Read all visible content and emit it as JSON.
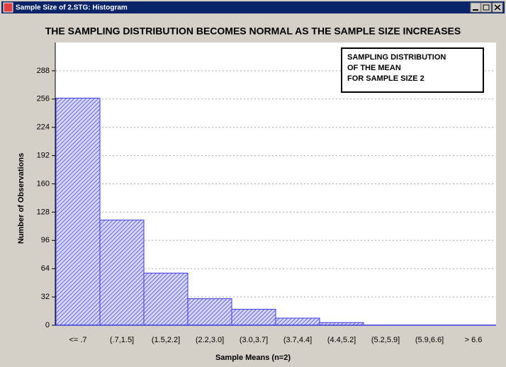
{
  "window": {
    "title": "Sample Size of 2.STG: Histogram"
  },
  "chart_data": {
    "type": "bar",
    "title": "THE SAMPLING DISTRIBUTION BECOMES NORMAL AS THE SAMPLE SIZE INCREASES",
    "annotation": [
      "SAMPLING DISTRIBUTION",
      "OF THE MEAN",
      "FOR SAMPLE SIZE 2"
    ],
    "x_label": "Sample Means (n=2)",
    "y_label": "Number of Observations",
    "categories": [
      "<= .7",
      "(.7,1.5]",
      "(1.5,2.2]",
      "(2.2,3.0]",
      "(3.0,3.7]",
      "(3.7,4.4]",
      "(4.4,5.2]",
      "(5.2,5.9]",
      "(5.9,6.6]",
      "> 6.6"
    ],
    "values": [
      257,
      119,
      59,
      30,
      18,
      8,
      3,
      0,
      0,
      0
    ],
    "color": "#3a3ae0",
    "ylim": [
      0,
      320
    ],
    "yticks": [
      0,
      32,
      64,
      96,
      128,
      160,
      192,
      224,
      256,
      288
    ],
    "grid": true
  }
}
